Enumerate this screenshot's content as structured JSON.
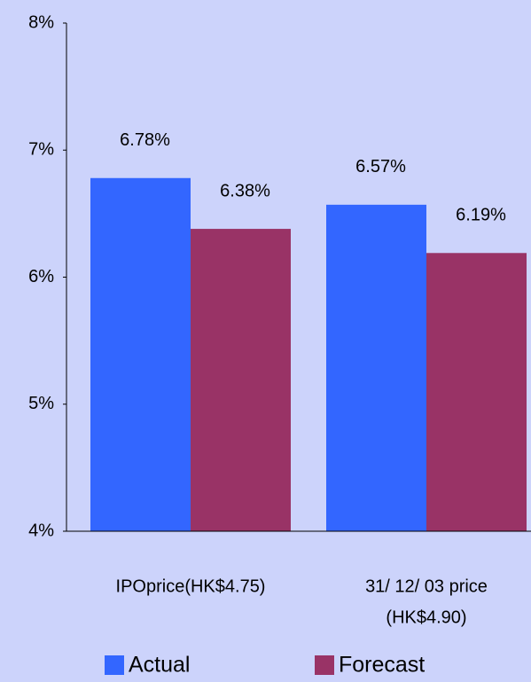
{
  "chart_data": {
    "type": "bar",
    "categories": [
      [
        "IPOprice(HK$4.75)"
      ],
      [
        "31/ 12/ 03 price",
        "(HK$4.90)"
      ]
    ],
    "series": [
      {
        "name": "Actual",
        "color": "#3366ff",
        "values": [
          6.78,
          6.57
        ],
        "value_labels": [
          "6.78%",
          "6.57%"
        ]
      },
      {
        "name": "Forecast",
        "color": "#993366",
        "values": [
          6.38,
          6.19
        ],
        "value_labels": [
          "6.38%",
          "6.19%"
        ]
      }
    ],
    "ylim": [
      4,
      8
    ],
    "yticks": [
      {
        "value": 4,
        "label": "4%"
      },
      {
        "value": 5,
        "label": "5%"
      },
      {
        "value": 6,
        "label": "6%"
      },
      {
        "value": 7,
        "label": "7%"
      },
      {
        "value": 8,
        "label": "8%"
      }
    ],
    "grid": false,
    "legend": "bottom"
  }
}
